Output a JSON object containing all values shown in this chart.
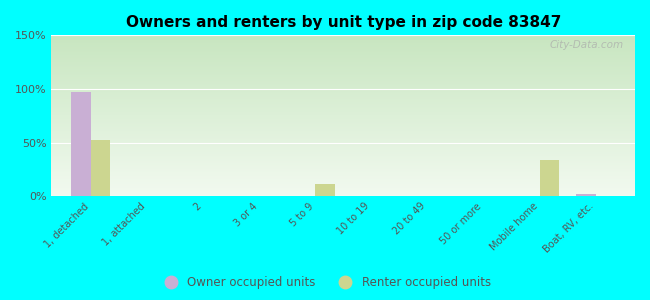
{
  "title": "Owners and renters by unit type in zip code 83847",
  "categories": [
    "1, detached",
    "1, attached",
    "2",
    "3 or 4",
    "5 to 9",
    "10 to 19",
    "20 to 49",
    "50 or more",
    "Mobile home",
    "Boat, RV, etc."
  ],
  "owner_values": [
    97,
    0,
    0,
    0,
    0,
    0,
    0,
    0,
    0,
    2
  ],
  "renter_values": [
    52,
    0,
    0,
    0,
    11,
    0,
    0,
    0,
    34,
    0
  ],
  "owner_color": "#c9afd4",
  "renter_color": "#ccd690",
  "background_color": "#00ffff",
  "grad_top": "#c8e6c0",
  "grad_bottom": "#f2faf0",
  "ylim": [
    0,
    150
  ],
  "yticks": [
    0,
    50,
    100,
    150
  ],
  "ytick_labels": [
    "0%",
    "50%",
    "100%",
    "150%"
  ],
  "legend_owner": "Owner occupied units",
  "legend_renter": "Renter occupied units",
  "bar_width": 0.35,
  "watermark": "City-Data.com"
}
